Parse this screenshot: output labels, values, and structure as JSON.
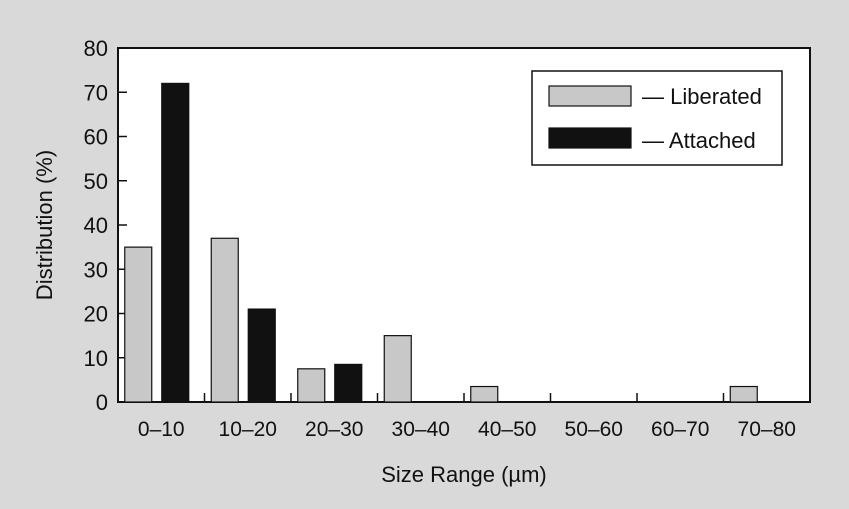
{
  "chart_data": {
    "type": "bar",
    "categories": [
      "0–10",
      "10–20",
      "20–30",
      "30–40",
      "40–50",
      "50–60",
      "60–70",
      "70–80"
    ],
    "series": [
      {
        "name": "— Liberated",
        "values": [
          35,
          37,
          7.5,
          15,
          3.5,
          0,
          0,
          3.5
        ],
        "color": "#c8c8c8"
      },
      {
        "name": "— Attached",
        "values": [
          72,
          21,
          8.5,
          0,
          0,
          0,
          0,
          0
        ],
        "color": "#111111"
      }
    ],
    "xlabel": "Size Range (µm)",
    "ylabel": "Distribution (%)",
    "ylim": [
      0,
      80
    ],
    "yticks": [
      0,
      10,
      20,
      30,
      40,
      50,
      60,
      70,
      80
    ],
    "grid": false,
    "legend_position": "top-right"
  }
}
